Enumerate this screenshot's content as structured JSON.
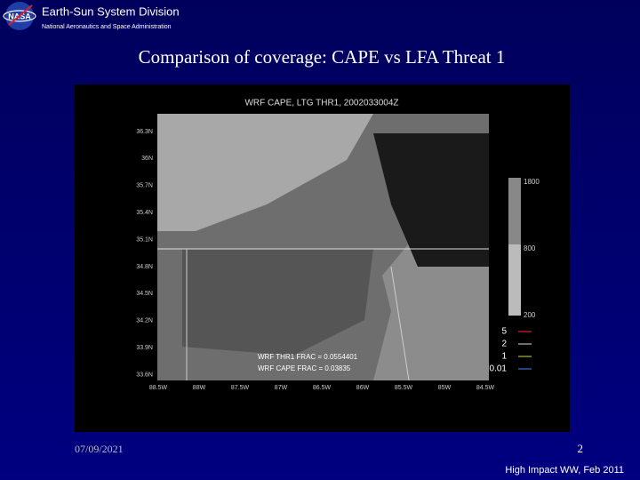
{
  "header": {
    "title": "Earth-Sun System Division",
    "subtitle": "National Aeronautics and Space Administration"
  },
  "slide_title": "Comparison of coverage: CAPE vs LFA Threat 1",
  "figure": {
    "title": "WRF CAPE, LTG THR1, 2002033004Z",
    "lat_labels": [
      "36.3N",
      "36N",
      "35.7N",
      "35.4N",
      "35.1N",
      "34.8N",
      "34.5N",
      "34.2N",
      "33.9N",
      "33.6N"
    ],
    "lon_labels": [
      "88.5W",
      "88W",
      "87.5W",
      "87W",
      "86.5W",
      "86W",
      "85.5W",
      "85W",
      "84.5W"
    ],
    "colorbar_labels": [
      "1800",
      "800",
      "200"
    ],
    "legend": [
      "5",
      "2",
      "1",
      "0.01"
    ],
    "annotations": [
      "WRF THR1 FRAC = 0.0554401",
      "WRF CAPE FRAC = 0.03835"
    ]
  },
  "footer": {
    "date": "07/09/2021",
    "page": "2",
    "event": "High Impact WW, Feb 2011"
  }
}
